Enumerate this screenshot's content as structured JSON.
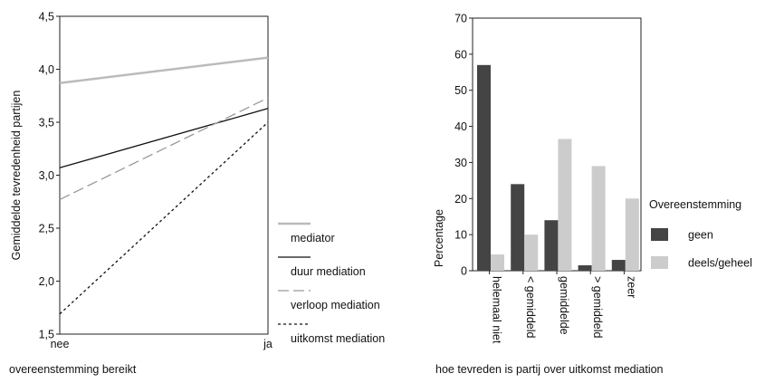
{
  "chart_data": [
    {
      "type": "line",
      "xlabel": "overeenstemming bereikt",
      "ylabel": "Gemiddelde tevredenheid partijen",
      "categories": [
        "nee",
        "ja"
      ],
      "ylim": [
        1.5,
        4.5
      ],
      "yticks": [
        "1,5",
        "2,0",
        "2,5",
        "3,0",
        "3,5",
        "4,0",
        "4,5"
      ],
      "grid": false,
      "legend_position": "right",
      "series": [
        {
          "name": "mediator",
          "values": [
            3.87,
            4.11
          ],
          "color": "#bbbbbb",
          "style": "solid-thick"
        },
        {
          "name": "duur mediation",
          "values": [
            3.07,
            3.63
          ],
          "color": "#111111",
          "style": "solid"
        },
        {
          "name": "verloop mediation",
          "values": [
            2.77,
            3.73
          ],
          "color": "#999999",
          "style": "long-dash"
        },
        {
          "name": "uitkomst mediation",
          "values": [
            1.69,
            3.5
          ],
          "color": "#111111",
          "style": "short-dash"
        }
      ]
    },
    {
      "type": "bar",
      "xlabel": "hoe tevreden is partij over uitkomst mediation",
      "ylabel": "Percentage",
      "categories": [
        "helemaal niet",
        "< gemiddeld",
        "gemiddelde",
        "> gemiddeld",
        "zeer"
      ],
      "ylim": [
        0,
        70
      ],
      "yticks": [
        "0",
        "10",
        "20",
        "30",
        "40",
        "50",
        "60",
        "70"
      ],
      "grid": false,
      "legend_title": "Overeenstemming",
      "legend_position": "right",
      "series": [
        {
          "name": "geen",
          "values": [
            57,
            24,
            14,
            1.5,
            3
          ],
          "color": "#444444"
        },
        {
          "name": "deels/geheel",
          "values": [
            4.5,
            10,
            36.5,
            29,
            20
          ],
          "color": "#cccccc"
        }
      ]
    }
  ]
}
